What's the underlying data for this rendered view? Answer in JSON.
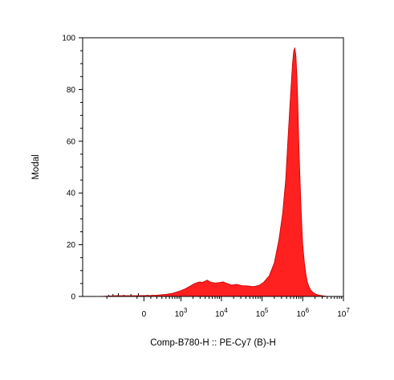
{
  "chart_data": {
    "type": "area",
    "title": "",
    "xlabel": "Comp-B780-H :: PE-Cy7 (B)-H",
    "ylabel": "Modal",
    "x_scale": "biexponential",
    "xlim": [
      -4000,
      10000000
    ],
    "ylim": [
      0,
      100
    ],
    "grid": false,
    "legend": "none",
    "x_ticks": [
      {
        "value": 0,
        "base": "0",
        "exp": ""
      },
      {
        "value": 1000,
        "base": "10",
        "exp": "3"
      },
      {
        "value": 10000,
        "base": "10",
        "exp": "4"
      },
      {
        "value": 100000,
        "base": "10",
        "exp": "5"
      },
      {
        "value": 1000000,
        "base": "10",
        "exp": "6"
      },
      {
        "value": 10000000,
        "base": "10",
        "exp": "7"
      }
    ],
    "y_ticks": [
      0,
      20,
      40,
      60,
      80,
      100
    ],
    "series": [
      {
        "color": "#ff2020",
        "stroke": "#c40000",
        "x": [
          -1500,
          -600,
          -100,
          100,
          200,
          400,
          600,
          900,
          1300,
          1700,
          2200,
          2800,
          3500,
          4500,
          5500,
          7000,
          9000,
          11000,
          14000,
          18000,
          24000,
          32000,
          40000,
          50000,
          60000,
          70000,
          85000,
          110000,
          150000,
          200000,
          260000,
          320000,
          380000,
          430000,
          480000,
          520000,
          560000,
          600000,
          640000,
          680000,
          720000,
          760000,
          800000,
          850000,
          900000,
          950000,
          1000000,
          1100000,
          1200000,
          1300000,
          1450000,
          1600000,
          1800000,
          2100000,
          2500000,
          3000000,
          4000000
        ],
        "y": [
          0,
          0.3,
          0.3,
          0.4,
          0.5,
          0.8,
          1.2,
          2,
          3,
          4,
          5,
          5.6,
          5.5,
          6.3,
          5.5,
          5.2,
          5.4,
          5.6,
          5.0,
          4.4,
          4.7,
          4.2,
          4.1,
          4.0,
          3.8,
          4.0,
          4.3,
          5.5,
          8,
          13,
          22,
          32,
          45,
          60,
          73,
          82,
          90,
          95,
          96,
          93,
          85,
          74,
          60,
          47,
          36,
          27,
          20,
          13,
          8.5,
          5.5,
          3.5,
          2.3,
          1.5,
          0.9,
          0.5,
          0.3,
          0
        ]
      }
    ]
  }
}
